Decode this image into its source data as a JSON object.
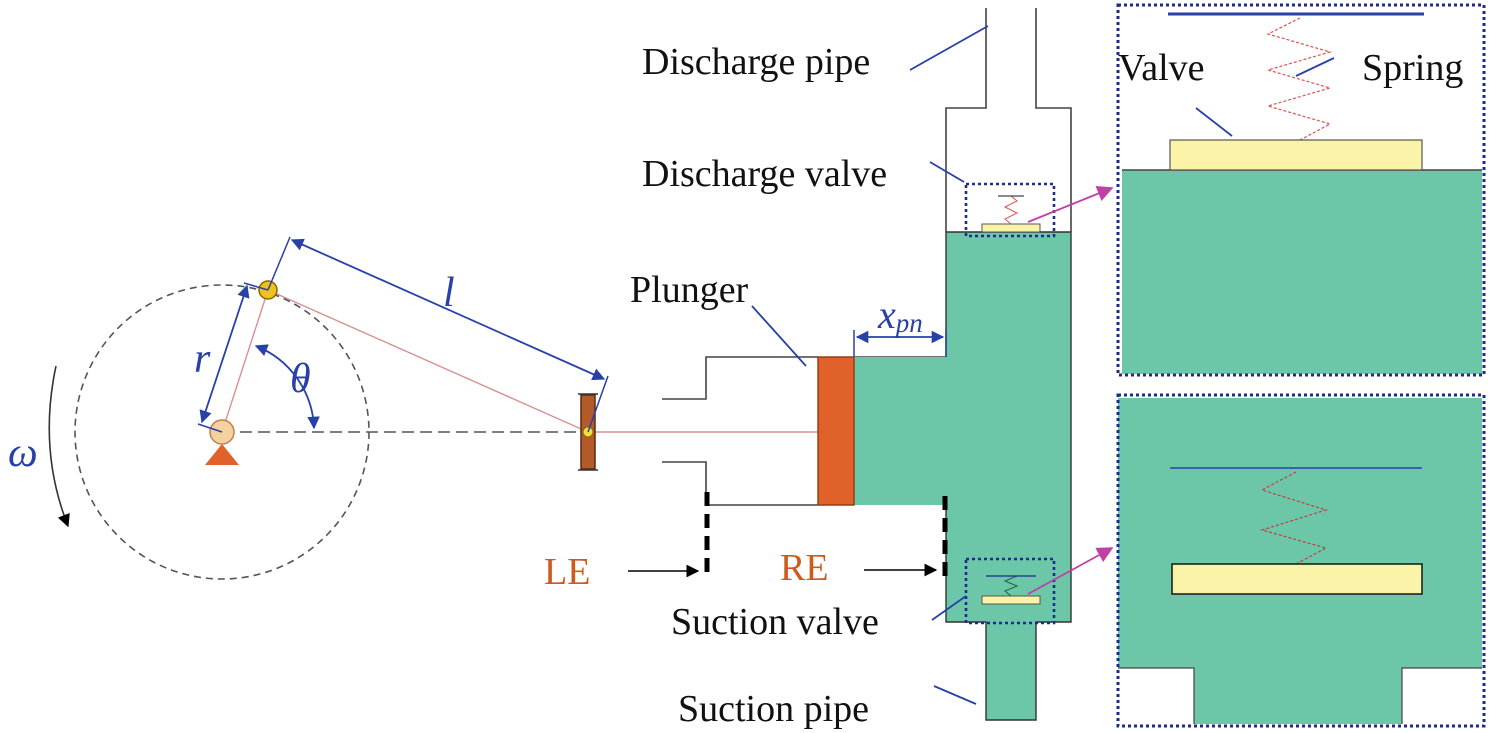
{
  "labels": {
    "discharge_pipe": "Discharge pipe",
    "discharge_valve": "Discharge valve",
    "plunger": "Plunger",
    "suction_valve": "Suction valve",
    "suction_pipe": "Suction pipe",
    "valve": "Valve",
    "spring": "Spring",
    "le": "LE",
    "re": "RE"
  },
  "symbols": {
    "connecting_rod_length": "l",
    "crank_radius": "r",
    "crank_angle": "θ",
    "angular_velocity": "ω",
    "plunger_displacement_base": "x",
    "plunger_displacement_sub": "pn"
  },
  "colors": {
    "fluid": "#6cc6a8",
    "plunger": "#e0622a",
    "valve_plate": "#faf3a8",
    "dimension": "#2840a8",
    "zoom_box": "#1e2a8c",
    "zoom_arrow": "#c040a8",
    "spring": "#e05050",
    "label_orange": "#d05a1e"
  }
}
